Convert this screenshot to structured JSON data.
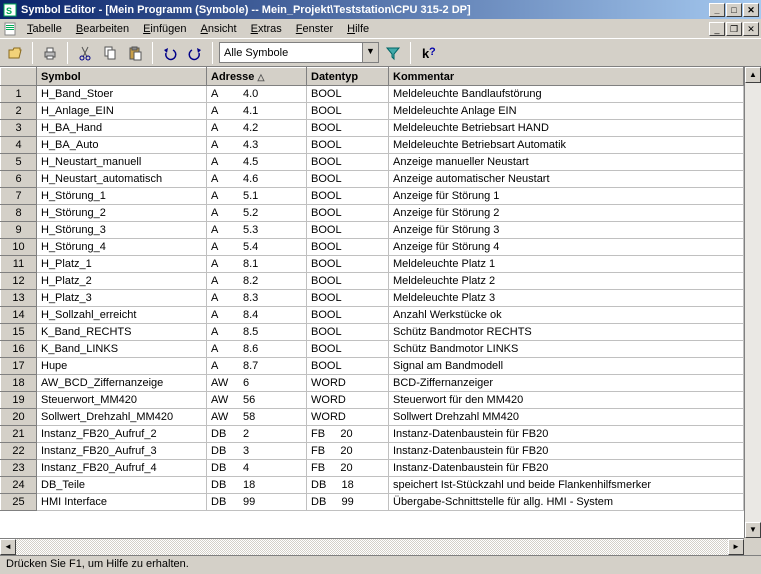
{
  "window": {
    "title": "Symbol Editor - [Mein Programm (Symbole) -- Mein_Projekt\\Teststation\\CPU 315-2 DP]"
  },
  "menu": {
    "items": [
      "Tabelle",
      "Bearbeiten",
      "Einfügen",
      "Ansicht",
      "Extras",
      "Fenster",
      "Hilfe"
    ]
  },
  "toolbar": {
    "filter_combo": "Alle Symbole"
  },
  "columns": {
    "symbol": "Symbol",
    "adresse": "Adresse",
    "datentyp": "Datentyp",
    "kommentar": "Kommentar",
    "sort_indicator": "△"
  },
  "rows": [
    {
      "n": "1",
      "symbol": "H_Band_Stoer",
      "ap": "A",
      "av": "4.0",
      "dt": "BOOL",
      "k": "Meldeleuchte Bandlaufstörung"
    },
    {
      "n": "2",
      "symbol": "H_Anlage_EIN",
      "ap": "A",
      "av": "4.1",
      "dt": "BOOL",
      "k": "Meldeleuchte Anlage EIN"
    },
    {
      "n": "3",
      "symbol": "H_BA_Hand",
      "ap": "A",
      "av": "4.2",
      "dt": "BOOL",
      "k": "Meldeleuchte Betriebsart HAND"
    },
    {
      "n": "4",
      "symbol": "H_BA_Auto",
      "ap": "A",
      "av": "4.3",
      "dt": "BOOL",
      "k": "Meldeleuchte Betriebsart Automatik"
    },
    {
      "n": "5",
      "symbol": "H_Neustart_manuell",
      "ap": "A",
      "av": "4.5",
      "dt": "BOOL",
      "k": "Anzeige manueller Neustart"
    },
    {
      "n": "6",
      "symbol": "H_Neustart_automatisch",
      "ap": "A",
      "av": "4.6",
      "dt": "BOOL",
      "k": "Anzeige automatischer Neustart"
    },
    {
      "n": "7",
      "symbol": "H_Störung_1",
      "ap": "A",
      "av": "5.1",
      "dt": "BOOL",
      "k": "Anzeige für Störung 1"
    },
    {
      "n": "8",
      "symbol": "H_Störung_2",
      "ap": "A",
      "av": "5.2",
      "dt": "BOOL",
      "k": "Anzeige für Störung 2"
    },
    {
      "n": "9",
      "symbol": "H_Störung_3",
      "ap": "A",
      "av": "5.3",
      "dt": "BOOL",
      "k": "Anzeige für Störung 3"
    },
    {
      "n": "10",
      "symbol": "H_Störung_4",
      "ap": "A",
      "av": "5.4",
      "dt": "BOOL",
      "k": "Anzeige für Störung 4"
    },
    {
      "n": "11",
      "symbol": "H_Platz_1",
      "ap": "A",
      "av": "8.1",
      "dt": "BOOL",
      "k": "Meldeleuchte Platz 1"
    },
    {
      "n": "12",
      "symbol": "H_Platz_2",
      "ap": "A",
      "av": "8.2",
      "dt": "BOOL",
      "k": "Meldeleuchte Platz 2"
    },
    {
      "n": "13",
      "symbol": "H_Platz_3",
      "ap": "A",
      "av": "8.3",
      "dt": "BOOL",
      "k": "Meldeleuchte Platz 3"
    },
    {
      "n": "14",
      "symbol": "H_Sollzahl_erreicht",
      "ap": "A",
      "av": "8.4",
      "dt": "BOOL",
      "k": "Anzahl Werkstücke ok"
    },
    {
      "n": "15",
      "symbol": "K_Band_RECHTS",
      "ap": "A",
      "av": "8.5",
      "dt": "BOOL",
      "k": "Schütz Bandmotor RECHTS"
    },
    {
      "n": "16",
      "symbol": "K_Band_LINKS",
      "ap": "A",
      "av": "8.6",
      "dt": "BOOL",
      "k": "Schütz Bandmotor LINKS"
    },
    {
      "n": "17",
      "symbol": "Hupe",
      "ap": "A",
      "av": "8.7",
      "dt": "BOOL",
      "k": "Signal am Bandmodell"
    },
    {
      "n": "18",
      "symbol": "AW_BCD_Ziffernanzeige",
      "ap": "AW",
      "av": "6",
      "dt": "WORD",
      "k": "BCD-Ziffernanzeiger"
    },
    {
      "n": "19",
      "symbol": "Steuerwort_MM420",
      "ap": "AW",
      "av": "56",
      "dt": "WORD",
      "k": "Steuerwort für den MM420"
    },
    {
      "n": "20",
      "symbol": "Sollwert_Drehzahl_MM420",
      "ap": "AW",
      "av": "58",
      "dt": "WORD",
      "k": "Sollwert Drehzahl MM420"
    },
    {
      "n": "21",
      "symbol": "Instanz_FB20_Aufruf_2",
      "ap": "DB",
      "av": "2",
      "dt": "FB     20",
      "k": "Instanz-Datenbaustein für FB20"
    },
    {
      "n": "22",
      "symbol": "Instanz_FB20_Aufruf_3",
      "ap": "DB",
      "av": "3",
      "dt": "FB     20",
      "k": "Instanz-Datenbaustein für FB20"
    },
    {
      "n": "23",
      "symbol": "Instanz_FB20_Aufruf_4",
      "ap": "DB",
      "av": "4",
      "dt": "FB     20",
      "k": "Instanz-Datenbaustein für FB20"
    },
    {
      "n": "24",
      "symbol": "DB_Teile",
      "ap": "DB",
      "av": "18",
      "dt": "DB     18",
      "k": "speichert Ist-Stückzahl und beide Flankenhilfsmerker"
    },
    {
      "n": "25",
      "symbol": "HMI Interface",
      "ap": "DB",
      "av": "99",
      "dt": "DB     99",
      "k": "Übergabe-Schnittstelle für allg. HMI - System"
    }
  ],
  "status": "Drücken Sie F1, um Hilfe zu erhalten."
}
